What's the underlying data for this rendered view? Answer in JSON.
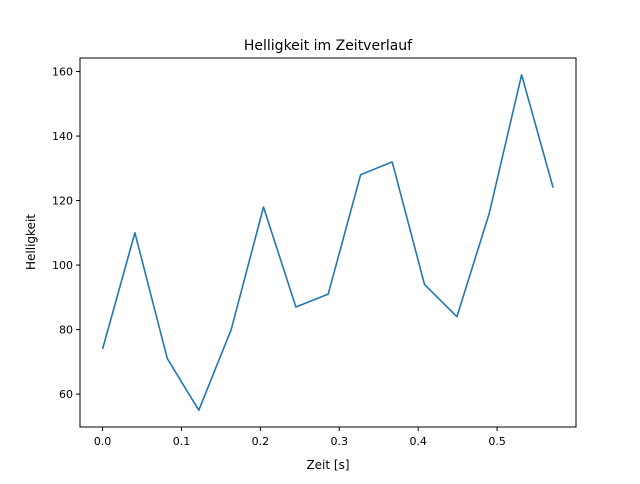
{
  "chart_data": {
    "type": "line",
    "title": "Helligkeit im Zeitverlauf",
    "xlabel": "Zeit [s]",
    "ylabel": "Helligkeit",
    "xlim": [
      -0.0286,
      0.6
    ],
    "ylim": [
      49.8,
      164.2
    ],
    "xticks": [
      0.0,
      0.1,
      0.2,
      0.3,
      0.4,
      0.5
    ],
    "xtick_labels": [
      "0.0",
      "0.1",
      "0.2",
      "0.3",
      "0.4",
      "0.5"
    ],
    "yticks": [
      60,
      80,
      100,
      120,
      140,
      160
    ],
    "ytick_labels": [
      "60",
      "80",
      "100",
      "120",
      "140",
      "160"
    ],
    "grid": false,
    "series": [
      {
        "name": "Helligkeit",
        "color": "#1f77b4",
        "x": [
          0,
          0.041,
          0.082,
          0.122,
          0.163,
          0.204,
          0.245,
          0.286,
          0.327,
          0.367,
          0.408,
          0.449,
          0.49,
          0.531,
          0.571
        ],
        "values": [
          74,
          110,
          71,
          55,
          80,
          118,
          87,
          91,
          128,
          132,
          94,
          84,
          116,
          159,
          124
        ]
      }
    ]
  }
}
